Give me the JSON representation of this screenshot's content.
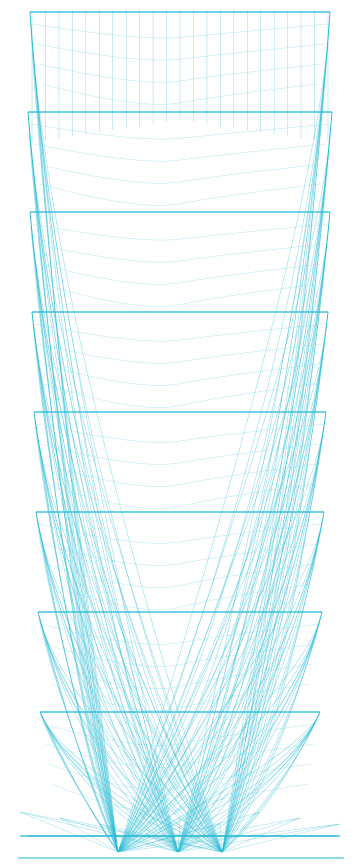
{
  "artwork": {
    "description_colors": {
      "line": "#2bbcd6",
      "line_light": "#7fd6e6",
      "background": "#ffffff"
    },
    "tiers": 9,
    "subject": "wireframe-fan-lattice-icon"
  }
}
